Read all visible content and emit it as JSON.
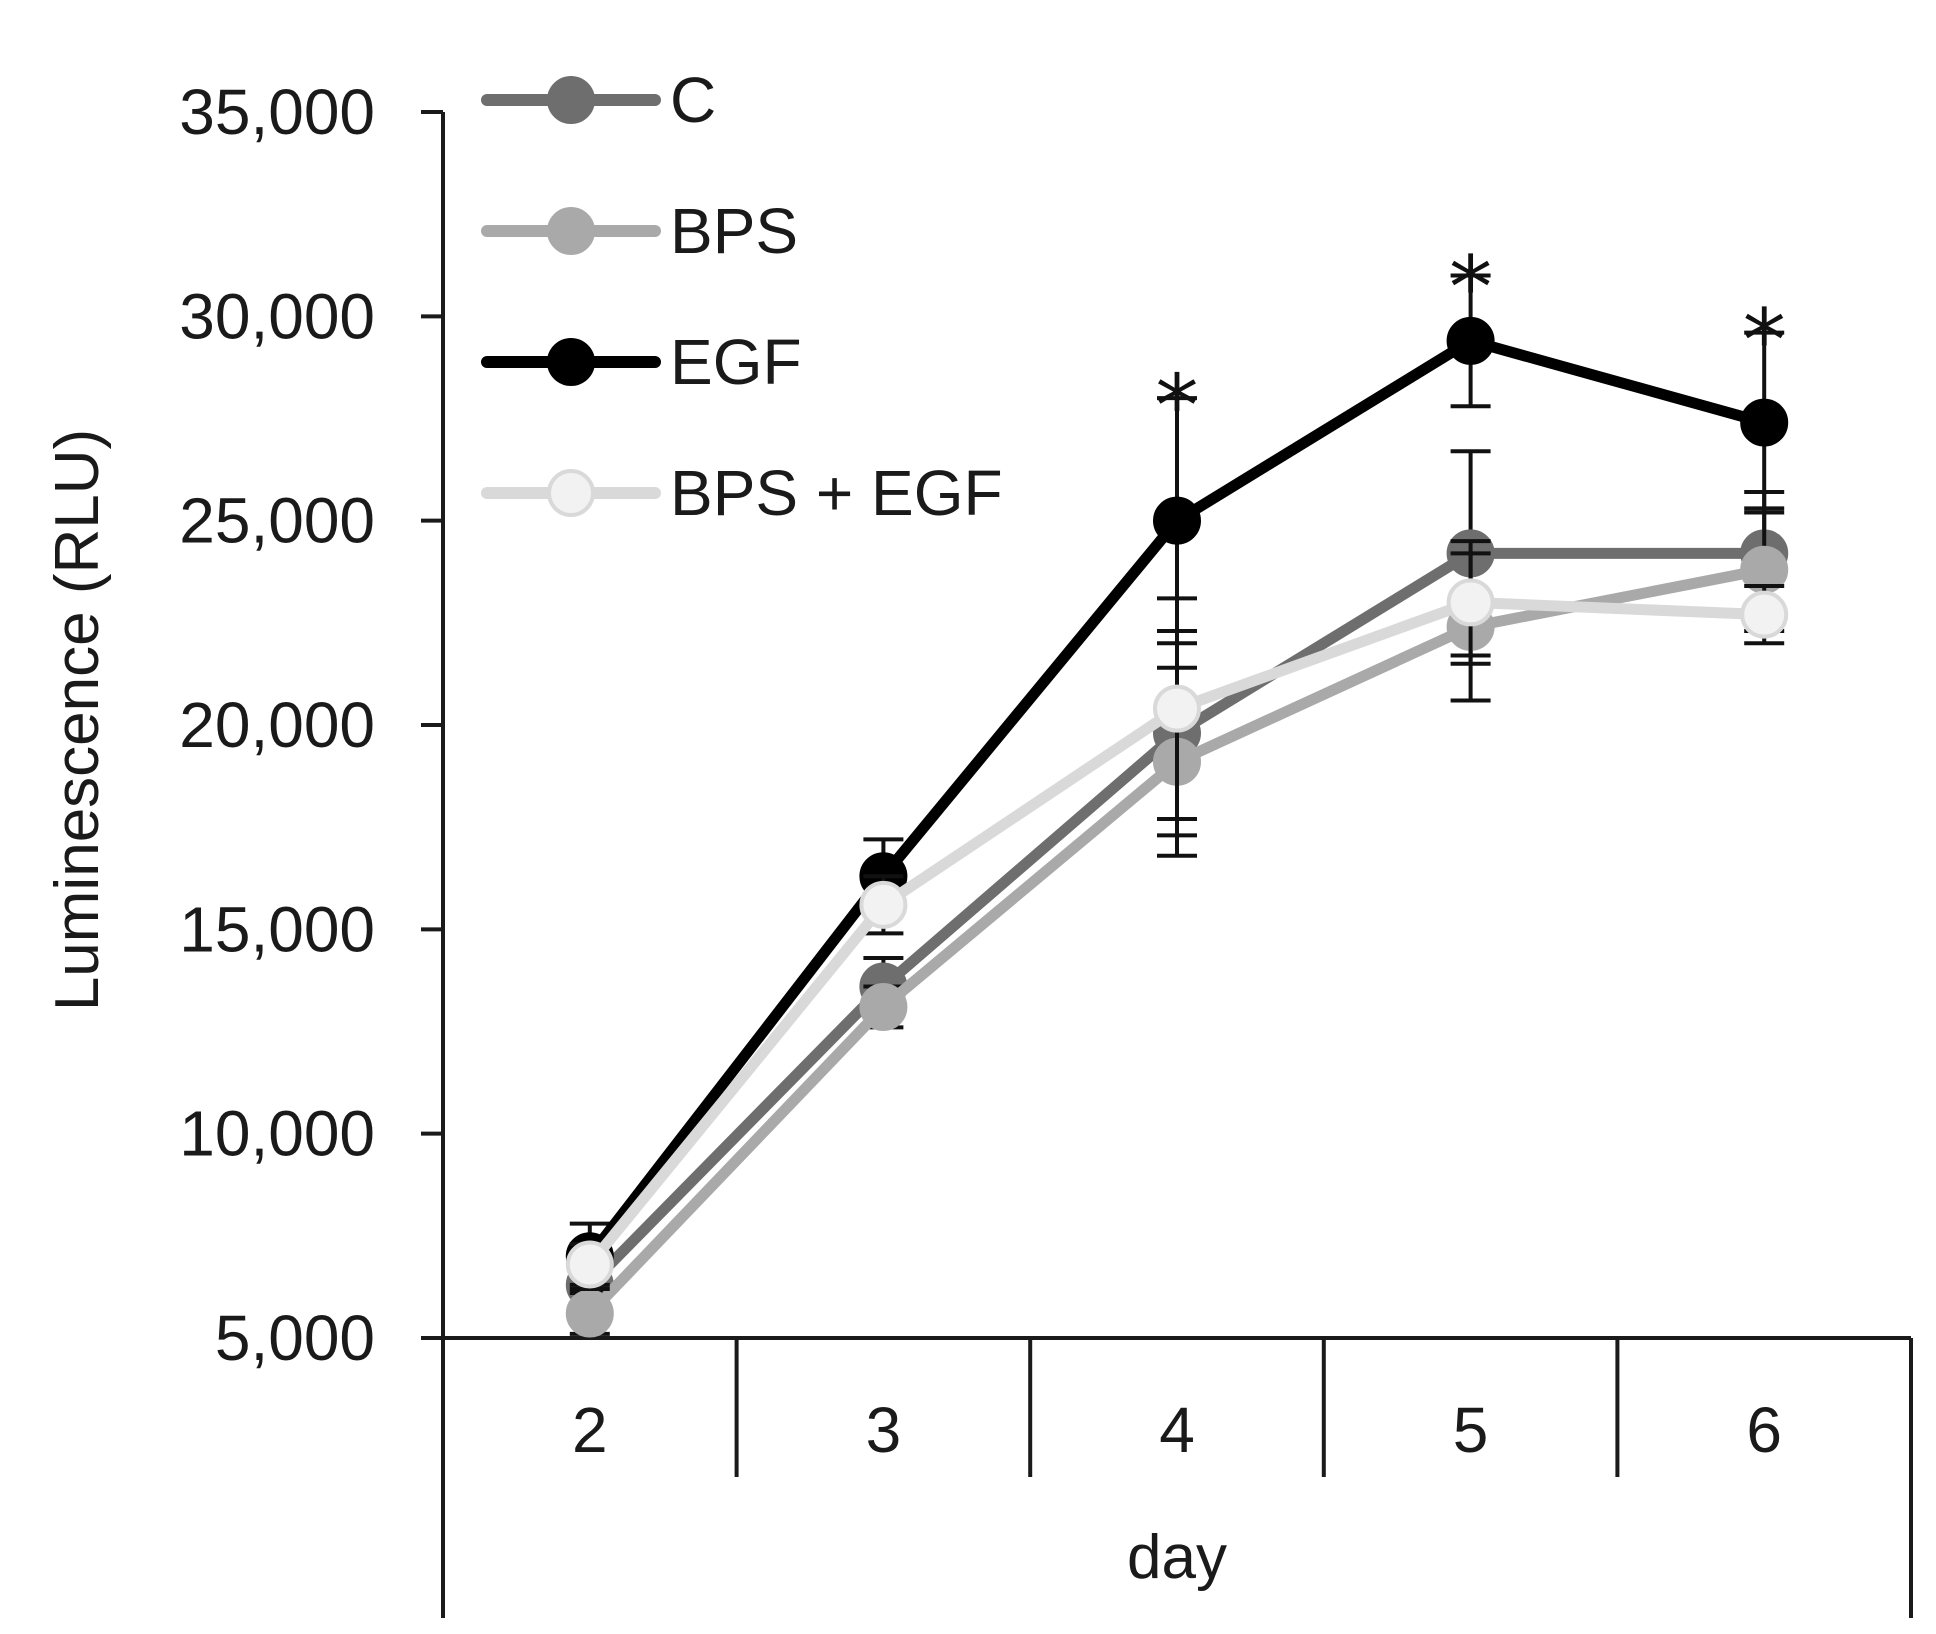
{
  "chart_data": {
    "type": "line",
    "title": "",
    "xlabel": "day",
    "ylabel": "Luminescence (RLU)",
    "x": [
      "2",
      "3",
      "4",
      "5",
      "6"
    ],
    "ylim": [
      5000,
      35000
    ],
    "yticks": [
      5000,
      10000,
      15000,
      20000,
      25000,
      30000,
      35000
    ],
    "ytick_labels": [
      "5,000",
      "10,000",
      "15,000",
      "20,000",
      "25,000",
      "30,000",
      "35,000"
    ],
    "grid": false,
    "legend_position": "top-left",
    "series": [
      {
        "name": "C",
        "color": "#6e6e6e",
        "marker_fill": "#6e6e6e",
        "values": [
          6300,
          13600,
          19800,
          24200,
          24200
        ],
        "errors": [
          500,
          700,
          2500,
          2500,
          1500
        ]
      },
      {
        "name": "BPS",
        "color": "#a9a9a9",
        "marker_fill": "#a9a9a9",
        "values": [
          5600,
          13100,
          19100,
          22400,
          23800
        ],
        "errors": [
          500,
          500,
          2300,
          1800,
          1500
        ]
      },
      {
        "name": "EGF",
        "color": "#000000",
        "marker_fill": "#000000",
        "values": [
          7000,
          16300,
          25000,
          29400,
          27400
        ],
        "errors": [
          800,
          900,
          3000,
          1600,
          2200
        ]
      },
      {
        "name": "BPS + EGF",
        "color": "#d9d9d9",
        "marker_fill": "#f2f2f2",
        "values": [
          6800,
          15600,
          20400,
          23000,
          22700
        ],
        "errors": [
          500,
          700,
          2700,
          1500,
          700
        ]
      }
    ],
    "annotations": [
      {
        "text": "*",
        "x": "4",
        "y": 28500
      },
      {
        "text": "*",
        "x": "5",
        "y": 31400
      },
      {
        "text": "*",
        "x": "6",
        "y": 30100
      }
    ]
  }
}
